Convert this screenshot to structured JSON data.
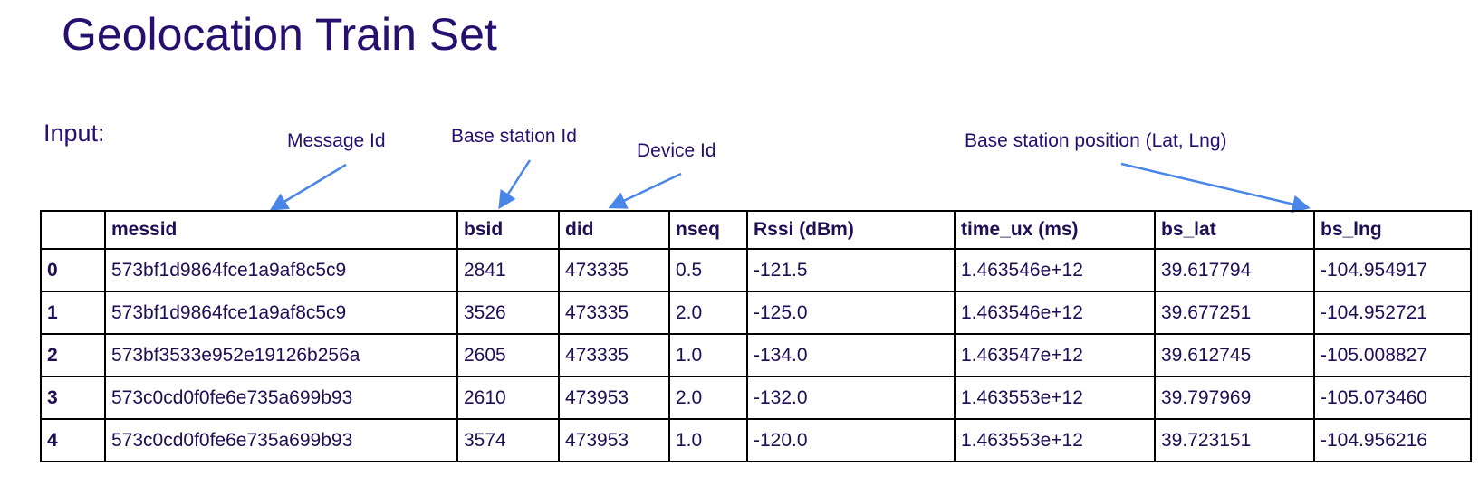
{
  "title": "Geolocation Train Set",
  "input_label": "Input:",
  "annotations": {
    "message_id": "Message Id",
    "base_station_id": "Base station Id",
    "device_id": "Device Id",
    "bs_position": "Base station position (Lat, Lng)"
  },
  "arrow_color": "#4a86e8",
  "table": {
    "columns": [
      "",
      "messid",
      "bsid",
      "did",
      "nseq",
      "Rssi (dBm)",
      "time_ux (ms)",
      "bs_lat",
      "bs_lng"
    ],
    "rows": [
      [
        "0",
        "573bf1d9864fce1a9af8c5c9",
        "2841",
        "473335",
        "0.5",
        "-121.5",
        "1.463546e+12",
        "39.617794",
        "-104.954917"
      ],
      [
        "1",
        "573bf1d9864fce1a9af8c5c9",
        "3526",
        "473335",
        "2.0",
        "-125.0",
        "1.463546e+12",
        "39.677251",
        "-104.952721"
      ],
      [
        "2",
        "573bf3533e952e19126b256a",
        "2605",
        "473335",
        "1.0",
        "-134.0",
        "1.463547e+12",
        "39.612745",
        "-105.008827"
      ],
      [
        "3",
        "573c0cd0f0fe6e735a699b93",
        "2610",
        "473953",
        "2.0",
        "-132.0",
        "1.463553e+12",
        "39.797969",
        "-105.073460"
      ],
      [
        "4",
        "573c0cd0f0fe6e735a699b93",
        "3574",
        "473953",
        "1.0",
        "-120.0",
        "1.463553e+12",
        "39.723151",
        "-104.956216"
      ]
    ]
  }
}
